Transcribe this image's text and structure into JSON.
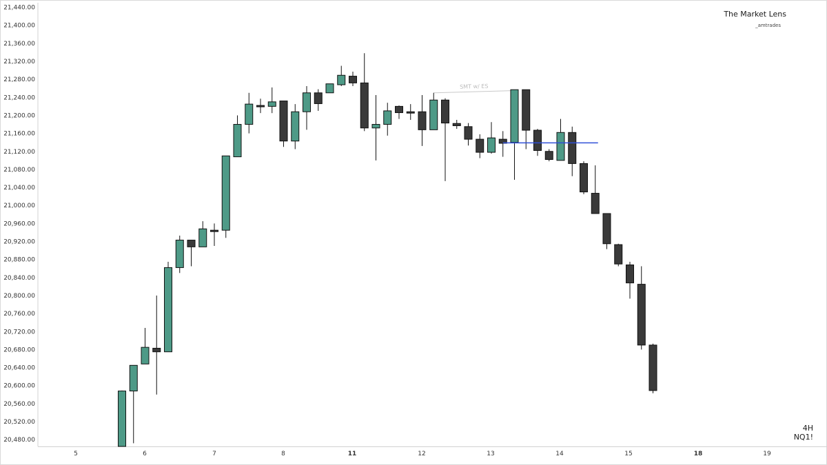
{
  "watermark": {
    "title": "The Market Lens",
    "subtitle": "_amtrades"
  },
  "timeframe": "4H",
  "symbol": "NQ1!",
  "chart_data": {
    "type": "candlestick",
    "ylim": [
      20465,
      21450
    ],
    "yticks": [
      "21,440.00",
      "21,400.00",
      "21,360.00",
      "21,320.00",
      "21,280.00",
      "21,240.00",
      "21,200.00",
      "21,160.00",
      "21,120.00",
      "21,080.00",
      "21,040.00",
      "21,000.00",
      "20,960.00",
      "20,920.00",
      "20,880.00",
      "20,840.00",
      "20,800.00",
      "20,760.00",
      "20,720.00",
      "20,680.00",
      "20,640.00",
      "20,600.00",
      "20,560.00",
      "20,520.00",
      "20,480.00"
    ],
    "xticks": [
      {
        "label": "5",
        "bold": false
      },
      {
        "label": "6",
        "bold": false
      },
      {
        "label": "7",
        "bold": false
      },
      {
        "label": "8",
        "bold": false
      },
      {
        "label": "11",
        "bold": true
      },
      {
        "label": "12",
        "bold": false
      },
      {
        "label": "13",
        "bold": false
      },
      {
        "label": "14",
        "bold": false
      },
      {
        "label": "15",
        "bold": false
      },
      {
        "label": "18",
        "bold": true
      },
      {
        "label": "19",
        "bold": false
      }
    ],
    "colors": {
      "up": "#4e9a87",
      "down": "#3a3a3a",
      "outline": "#111111",
      "level": "#2f4fd8",
      "annotation": "#c8c8c8"
    },
    "candles": [
      {
        "o": 20465,
        "h": 20589,
        "l": 20465,
        "c": 20588
      },
      {
        "o": 20588,
        "h": 20640,
        "l": 20472,
        "c": 20645
      },
      {
        "o": 20648,
        "h": 20728,
        "l": 20648,
        "c": 20685
      },
      {
        "o": 20683,
        "h": 20800,
        "l": 20580,
        "c": 20675
      },
      {
        "o": 20675,
        "h": 20875,
        "l": 20675,
        "c": 20862
      },
      {
        "o": 20862,
        "h": 20933,
        "l": 20850,
        "c": 20923
      },
      {
        "o": 20923,
        "h": 20922,
        "l": 20865,
        "c": 20908
      },
      {
        "o": 20908,
        "h": 20965,
        "l": 20908,
        "c": 20948
      },
      {
        "o": 20945,
        "h": 20960,
        "l": 20910,
        "c": 20942
      },
      {
        "o": 20945,
        "h": 21110,
        "l": 20928,
        "c": 21110
      },
      {
        "o": 21108,
        "h": 21200,
        "l": 21108,
        "c": 21180
      },
      {
        "o": 21180,
        "h": 21250,
        "l": 21160,
        "c": 21225
      },
      {
        "o": 21222,
        "h": 21237,
        "l": 21205,
        "c": 21220
      },
      {
        "o": 21220,
        "h": 21262,
        "l": 21205,
        "c": 21230
      },
      {
        "o": 21232,
        "h": 21232,
        "l": 21130,
        "c": 21143
      },
      {
        "o": 21143,
        "h": 21225,
        "l": 21125,
        "c": 21208
      },
      {
        "o": 21208,
        "h": 21265,
        "l": 21168,
        "c": 21250
      },
      {
        "o": 21250,
        "h": 21258,
        "l": 21210,
        "c": 21226
      },
      {
        "o": 21250,
        "h": 21270,
        "l": 21250,
        "c": 21270
      },
      {
        "o": 21268,
        "h": 21310,
        "l": 21265,
        "c": 21289
      },
      {
        "o": 21287,
        "h": 21297,
        "l": 21265,
        "c": 21272
      },
      {
        "o": 21272,
        "h": 21338,
        "l": 21165,
        "c": 21172
      },
      {
        "o": 21172,
        "h": 21245,
        "l": 21100,
        "c": 21180
      },
      {
        "o": 21180,
        "h": 21228,
        "l": 21155,
        "c": 21210
      },
      {
        "o": 21220,
        "h": 21222,
        "l": 21192,
        "c": 21206
      },
      {
        "o": 21208,
        "h": 21225,
        "l": 21190,
        "c": 21207
      },
      {
        "o": 21208,
        "h": 21245,
        "l": 21132,
        "c": 21168
      },
      {
        "o": 21168,
        "h": 21250,
        "l": 21168,
        "c": 21234
      },
      {
        "o": 21234,
        "h": 21238,
        "l": 21054,
        "c": 21183
      },
      {
        "o": 21182,
        "h": 21190,
        "l": 21170,
        "c": 21177
      },
      {
        "o": 21175,
        "h": 21183,
        "l": 21133,
        "c": 21147
      },
      {
        "o": 21147,
        "h": 21158,
        "l": 21105,
        "c": 21118
      },
      {
        "o": 21118,
        "h": 21185,
        "l": 21115,
        "c": 21150
      },
      {
        "o": 21147,
        "h": 21165,
        "l": 21108,
        "c": 21138
      },
      {
        "o": 21140,
        "h": 21255,
        "l": 21057,
        "c": 21257
      },
      {
        "o": 21257,
        "h": 21255,
        "l": 21125,
        "c": 21167
      },
      {
        "o": 21167,
        "h": 21170,
        "l": 21110,
        "c": 21122
      },
      {
        "o": 21120,
        "h": 21125,
        "l": 21098,
        "c": 21102
      },
      {
        "o": 21100,
        "h": 21192,
        "l": 21100,
        "c": 21162
      },
      {
        "o": 21162,
        "h": 21175,
        "l": 21065,
        "c": 21093
      },
      {
        "o": 21093,
        "h": 21098,
        "l": 21025,
        "c": 21030
      },
      {
        "o": 21027,
        "h": 21089,
        "l": 20985,
        "c": 20982
      },
      {
        "o": 20982,
        "h": 20978,
        "l": 20903,
        "c": 20915
      },
      {
        "o": 20913,
        "h": 20915,
        "l": 20865,
        "c": 20870
      },
      {
        "o": 20868,
        "h": 20875,
        "l": 20793,
        "c": 20828
      },
      {
        "o": 20825,
        "h": 20865,
        "l": 20680,
        "c": 20690
      },
      {
        "o": 20690,
        "h": 20693,
        "l": 20583,
        "c": 20589
      }
    ],
    "level_line": {
      "y": 21139,
      "from_index": 33,
      "to_index": 41
    },
    "annotation": {
      "text": "SMT w/ ES",
      "from_index": 27,
      "to_index": 34
    }
  }
}
